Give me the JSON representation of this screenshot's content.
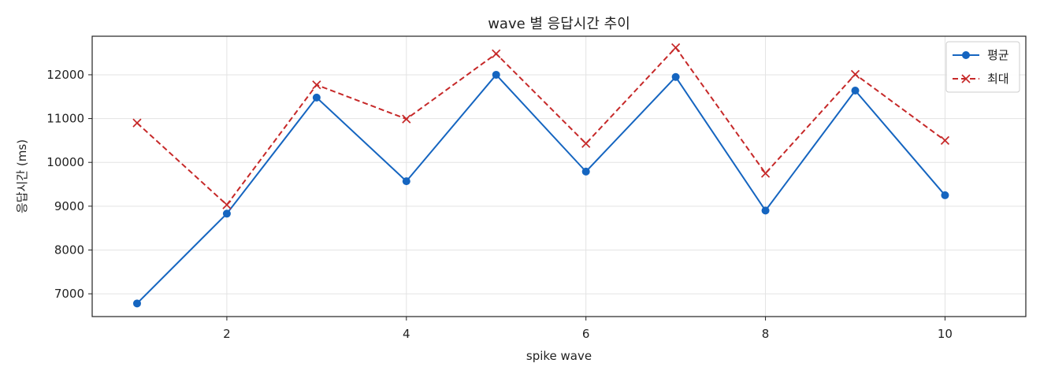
{
  "chart_data": {
    "type": "line",
    "title": "wave 별 응답시간 추이",
    "xlabel": "spike wave",
    "ylabel": "응답시간 (ms)",
    "x": [
      1,
      2,
      3,
      4,
      5,
      6,
      7,
      8,
      9,
      10
    ],
    "xlim": [
      0.5,
      10.9
    ],
    "ylim": [
      6480,
      12880
    ],
    "xticks": [
      2,
      4,
      6,
      8,
      10
    ],
    "yticks": [
      7000,
      8000,
      9000,
      10000,
      11000,
      12000
    ],
    "grid": true,
    "legend_position": "top-right",
    "series": [
      {
        "name": "평균",
        "color": "#1565c0",
        "line_style": "solid",
        "marker": "circle",
        "values": [
          6780,
          8830,
          11480,
          9570,
          12000,
          9790,
          11950,
          8900,
          11640,
          9250
        ]
      },
      {
        "name": "최대",
        "color": "#c62828",
        "line_style": "dashed",
        "marker": "x",
        "values": [
          10900,
          9030,
          11770,
          10990,
          12480,
          10430,
          12620,
          9750,
          12010,
          10500
        ]
      }
    ]
  }
}
